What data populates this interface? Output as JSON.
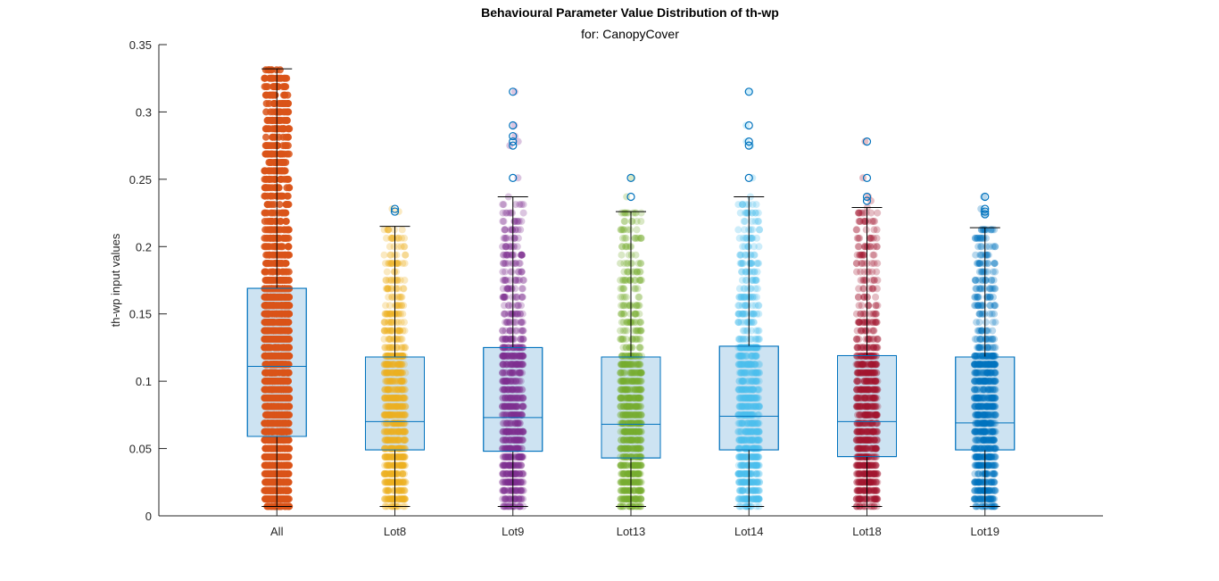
{
  "chart_data": {
    "type": "box",
    "title": "Behavioural Parameter Value Distribution of th-wp",
    "subtitle": "for: CanopyCover",
    "xlabel": "",
    "ylabel": "th-wp input values",
    "ylim": [
      0,
      0.35
    ],
    "yticks": [
      0,
      0.05,
      0.1,
      0.15,
      0.2,
      0.25,
      0.3,
      0.35
    ],
    "ytick_labels": [
      "0",
      "0.05",
      "0.1",
      "0.15",
      "0.2",
      "0.25",
      "0.3",
      "0.35"
    ],
    "categories": [
      "All",
      "Lot8",
      "Lot9",
      "Lot13",
      "Lot14",
      "Lot18",
      "Lot19"
    ],
    "grid": false,
    "box_color": "#0072bd",
    "box_fill": "#cde3f2",
    "series": [
      {
        "category": "All",
        "color": "#d95319",
        "min": 0.007,
        "q1": 0.059,
        "median": 0.111,
        "q3": 0.169,
        "max": 0.332,
        "outliers": []
      },
      {
        "category": "Lot8",
        "color": "#edb120",
        "min": 0.007,
        "q1": 0.049,
        "median": 0.07,
        "q3": 0.118,
        "max": 0.215,
        "outliers": [
          0.226,
          0.228
        ]
      },
      {
        "category": "Lot9",
        "color": "#7e2f8e",
        "min": 0.007,
        "q1": 0.048,
        "median": 0.073,
        "q3": 0.125,
        "max": 0.237,
        "outliers": [
          0.251,
          0.275,
          0.278,
          0.282,
          0.29,
          0.315
        ]
      },
      {
        "category": "Lot13",
        "color": "#77ac30",
        "min": 0.007,
        "q1": 0.043,
        "median": 0.068,
        "q3": 0.118,
        "max": 0.226,
        "outliers": [
          0.237,
          0.251
        ]
      },
      {
        "category": "Lot14",
        "color": "#4dbeee",
        "min": 0.007,
        "q1": 0.049,
        "median": 0.074,
        "q3": 0.126,
        "max": 0.237,
        "outliers": [
          0.251,
          0.275,
          0.278,
          0.29,
          0.315
        ]
      },
      {
        "category": "Lot18",
        "color": "#a2142f",
        "min": 0.007,
        "q1": 0.044,
        "median": 0.07,
        "q3": 0.119,
        "max": 0.229,
        "outliers": [
          0.234,
          0.237,
          0.251,
          0.278
        ]
      },
      {
        "category": "Lot19",
        "color": "#0072bd",
        "min": 0.007,
        "q1": 0.049,
        "median": 0.069,
        "q3": 0.118,
        "max": 0.214,
        "outliers": [
          0.224,
          0.226,
          0.228,
          0.237
        ]
      }
    ]
  }
}
